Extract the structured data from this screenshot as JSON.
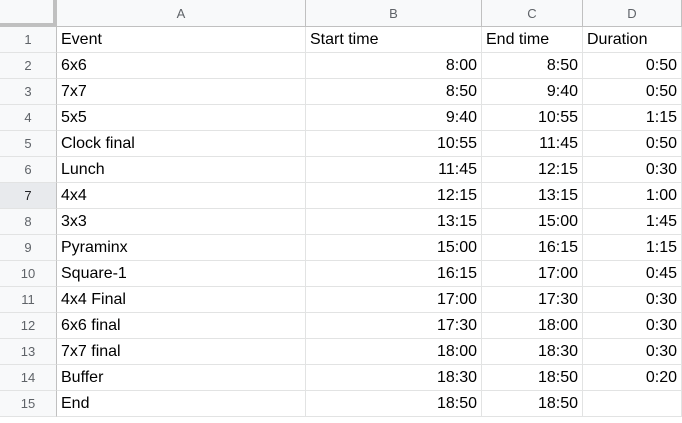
{
  "columns": [
    "A",
    "B",
    "C",
    "D"
  ],
  "rows": [
    {
      "num": "1",
      "cells": [
        "Event",
        "Start time",
        "End time",
        "Duration"
      ]
    },
    {
      "num": "2",
      "cells": [
        "6x6",
        "8:00",
        "8:50",
        "0:50"
      ]
    },
    {
      "num": "3",
      "cells": [
        "7x7",
        "8:50",
        "9:40",
        "0:50"
      ]
    },
    {
      "num": "4",
      "cells": [
        "5x5",
        "9:40",
        "10:55",
        "1:15"
      ]
    },
    {
      "num": "5",
      "cells": [
        "Clock final",
        "10:55",
        "11:45",
        "0:50"
      ]
    },
    {
      "num": "6",
      "cells": [
        "Lunch",
        "11:45",
        "12:15",
        "0:30"
      ]
    },
    {
      "num": "7",
      "cells": [
        "4x4",
        "12:15",
        "13:15",
        "1:00"
      ]
    },
    {
      "num": "8",
      "cells": [
        "3x3",
        "13:15",
        "15:00",
        "1:45"
      ]
    },
    {
      "num": "9",
      "cells": [
        "Pyraminx",
        "15:00",
        "16:15",
        "1:15"
      ]
    },
    {
      "num": "10",
      "cells": [
        "Square-1",
        "16:15",
        "17:00",
        "0:45"
      ]
    },
    {
      "num": "11",
      "cells": [
        "4x4 Final",
        "17:00",
        "17:30",
        "0:30"
      ]
    },
    {
      "num": "12",
      "cells": [
        "6x6 final",
        "17:30",
        "18:00",
        "0:30"
      ]
    },
    {
      "num": "13",
      "cells": [
        "7x7 final",
        "18:00",
        "18:30",
        "0:30"
      ]
    },
    {
      "num": "14",
      "cells": [
        "Buffer",
        "18:30",
        "18:50",
        "0:20"
      ]
    },
    {
      "num": "15",
      "cells": [
        "End",
        "18:50",
        "18:50",
        ""
      ]
    }
  ],
  "selected_row": "7"
}
